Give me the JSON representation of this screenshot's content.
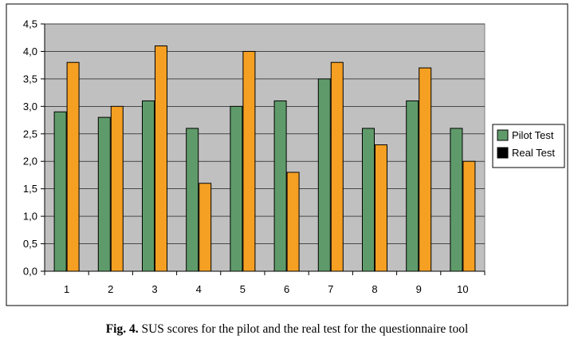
{
  "chart_data": {
    "type": "bar",
    "categories": [
      "1",
      "2",
      "3",
      "4",
      "5",
      "6",
      "7",
      "8",
      "9",
      "10"
    ],
    "series": [
      {
        "name": "Pilot Test",
        "color": "#5f9b6a",
        "values": [
          2.9,
          2.8,
          3.1,
          2.6,
          3.0,
          3.1,
          3.5,
          2.6,
          3.1,
          2.6
        ]
      },
      {
        "name": "Real Test",
        "color": "#f5a023",
        "values": [
          3.8,
          3.0,
          4.1,
          1.6,
          4.0,
          1.8,
          3.8,
          2.3,
          3.7,
          2.0
        ]
      }
    ],
    "ylim": [
      0,
      4.5
    ],
    "yticks": [
      "0,0",
      "0,5",
      "1,0",
      "1,5",
      "2,0",
      "2,5",
      "3,0",
      "3,5",
      "4,0",
      "4,5"
    ],
    "legend_swatches": [
      "#5f9b6a",
      "#000000"
    ],
    "plot_background": "#c0c0c0",
    "grid": true,
    "legend_position": "right"
  },
  "caption": {
    "label": "Fig. 4.",
    "text": " SUS scores for the pilot and the real test for the questionnaire tool"
  }
}
